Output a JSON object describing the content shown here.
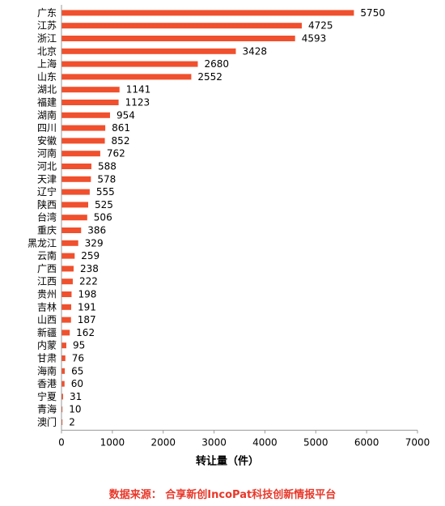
{
  "chart_data": {
    "type": "bar",
    "orientation": "horizontal",
    "categories": [
      "广东",
      "江苏",
      "浙江",
      "北京",
      "上海",
      "山东",
      "湖北",
      "福建",
      "湖南",
      "四川",
      "安徽",
      "河南",
      "河北",
      "天津",
      "辽宁",
      "陕西",
      "台湾",
      "重庆",
      "黑龙江",
      "云南",
      "广西",
      "江西",
      "贵州",
      "吉林",
      "山西",
      "新疆",
      "内蒙",
      "甘肃",
      "海南",
      "香港",
      "宁夏",
      "青海",
      "澳门"
    ],
    "values": [
      5750,
      4725,
      4593,
      3428,
      2680,
      2552,
      1141,
      1123,
      954,
      861,
      852,
      762,
      588,
      578,
      555,
      525,
      506,
      386,
      329,
      259,
      238,
      222,
      198,
      191,
      187,
      162,
      95,
      76,
      65,
      60,
      31,
      10,
      2
    ],
    "xlabel": "转让量（件）",
    "xlim": [
      0,
      7000
    ],
    "xticks": [
      0,
      1000,
      2000,
      3000,
      4000,
      5000,
      6000,
      7000
    ],
    "grid": false,
    "bar_color": "#f0502d"
  },
  "source_note": "数据来源： 合享新创IncoPat科技创新情报平台",
  "colors": {
    "source_text": "#e8382a",
    "axis": "#999999"
  }
}
